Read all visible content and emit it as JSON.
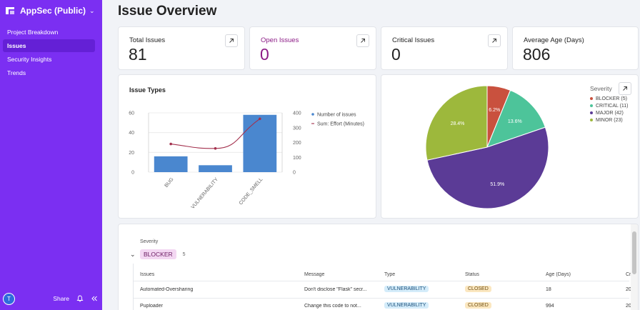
{
  "sidebar": {
    "app_title": "AppSec (Public)",
    "items": [
      {
        "label": "Project Breakdown",
        "active": false
      },
      {
        "label": "Issues",
        "active": true
      },
      {
        "label": "Security Insights",
        "active": false
      },
      {
        "label": "Trends",
        "active": false
      }
    ],
    "user_initial": "T",
    "share_label": "Share"
  },
  "page_title": "Issue Overview",
  "stats": [
    {
      "label": "Total Issues",
      "value": "81"
    },
    {
      "label": "Open Issues",
      "value": "0"
    },
    {
      "label": "Critical Issues",
      "value": "0"
    },
    {
      "label": "Average Age (Days)",
      "value": "806"
    }
  ],
  "issue_types": {
    "title": "Issue Types"
  },
  "severity_pie": {
    "title": "Severity"
  },
  "chart_data": [
    {
      "type": "bar",
      "categories": [
        "BUG",
        "VULNERABILITY",
        "CODE_SMELL"
      ],
      "series": [
        {
          "name": "Number of issues",
          "type": "bar",
          "axis": "left",
          "values": [
            16,
            7,
            58
          ],
          "color": "#4a87cf"
        },
        {
          "name": "Sum: Effort (Minutes)",
          "type": "line",
          "axis": "right",
          "values": [
            190,
            160,
            360
          ],
          "color": "#a3304d"
        }
      ],
      "ylim": [
        0,
        60
      ],
      "yticks": [
        "0",
        "20",
        "40",
        "60"
      ],
      "y2lim": [
        0,
        400
      ],
      "y2ticks": [
        "0",
        "100",
        "200",
        "300",
        "400"
      ],
      "legend": "right"
    },
    {
      "type": "pie",
      "title": "Severity",
      "slices": [
        {
          "label": "BLOCKER (5)",
          "value": 5,
          "percent": "6.2%",
          "color": "#c9513e"
        },
        {
          "label": "CRITICAL (11)",
          "value": 11,
          "percent": "13.6%",
          "color": "#4dc49a"
        },
        {
          "label": "MAJOR (42)",
          "value": 42,
          "percent": "51.9%",
          "color": "#5b3b96"
        },
        {
          "label": "MINOR (23)",
          "value": 23,
          "percent": "28.4%",
          "color": "#9db83c"
        }
      ],
      "legend": "top-right"
    }
  ],
  "table": {
    "group_by_label": "Severity",
    "group": {
      "name": "BLOCKER",
      "count": "5"
    },
    "columns": [
      "Issues",
      "Message",
      "Type",
      "Status",
      "Age (Days)",
      "Cr"
    ],
    "rows": [
      {
        "issue": "Automated-Oversharing",
        "message": "Don't disclose \"Flask\" secr...",
        "type": "VULNERABILITY",
        "status": "CLOSED",
        "age": "18",
        "created": "20"
      },
      {
        "issue": "Puploader",
        "message": "Change this code to not...",
        "type": "VULNERABILITY",
        "status": "CLOSED",
        "age": "994",
        "created": "20"
      }
    ]
  }
}
